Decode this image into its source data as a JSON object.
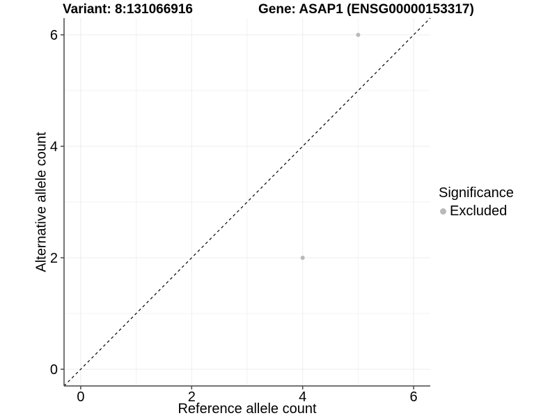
{
  "chart_data": {
    "type": "scatter",
    "title_left": "Variant: 8:131066916",
    "title_right": "Gene: ASAP1 (ENSG00000153317)",
    "xlabel": "Reference allele count",
    "ylabel": "Alternative allele count",
    "xlim": [
      -0.3,
      6.3
    ],
    "ylim": [
      -0.3,
      6.3
    ],
    "xticks": [
      0,
      2,
      4,
      6
    ],
    "yticks": [
      0,
      2,
      4,
      6
    ],
    "xticks_minor": [
      1,
      3,
      5
    ],
    "yticks_minor": [
      1,
      3,
      5
    ],
    "grid": "major and minor, light gray, no top/right border",
    "reference_line": {
      "type": "identity y=x",
      "style": "dashed",
      "color": "#000000"
    },
    "series": [
      {
        "name": "Excluded",
        "color": "#b9b9b9",
        "marker": "circle",
        "points": [
          {
            "x": 5,
            "y": 6
          },
          {
            "x": 4,
            "y": 2
          }
        ]
      }
    ],
    "legend": {
      "title": "Significance",
      "position": "right",
      "items": [
        {
          "label": "Excluded",
          "color": "#b9b9b9"
        }
      ]
    }
  },
  "colors": {
    "background": "#ffffff",
    "axis": "#464646",
    "grid_major": "#ececec",
    "grid_minor": "#f2f2f2",
    "tick_label": "#000000",
    "point": "#b9b9b9"
  }
}
